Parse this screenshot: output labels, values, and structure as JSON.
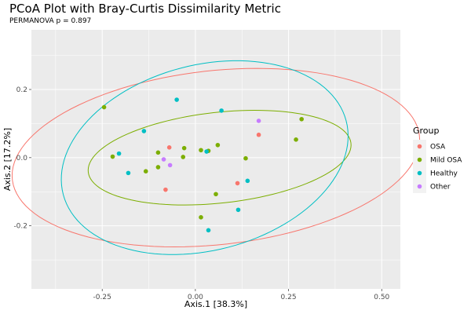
{
  "title": "PCoA Plot with Bray-Curtis Dissimilarity Metric",
  "subtitle": "PERMANOVA p = 0.897",
  "chart_data": {
    "type": "scatter",
    "title": "PCoA Plot with Bray-Curtis Dissimilarity Metric",
    "subtitle": "PERMANOVA p = 0.897",
    "xlabel": "Axis.1   [38.3%]",
    "ylabel": "Axis.2   [17.2%]",
    "xlim": [
      -0.44,
      0.55
    ],
    "ylim": [
      -0.385,
      0.375
    ],
    "x_ticks": [
      -0.25,
      0.0,
      0.25,
      0.5
    ],
    "x_tick_labels": [
      "-0.25",
      "0.00",
      "0.25",
      "0.50"
    ],
    "y_ticks": [
      -0.2,
      0.0,
      0.2
    ],
    "y_tick_labels": [
      "-0.2",
      "0.0",
      "0.2"
    ],
    "grid": true,
    "legend": {
      "title": "Group",
      "position": "right"
    },
    "series": [
      {
        "name": "OSA",
        "color": "#F8766D",
        "points": [
          [
            -0.07,
            0.03
          ],
          [
            -0.08,
            -0.094
          ],
          [
            0.113,
            -0.075
          ],
          [
            0.17,
            0.067
          ]
        ],
        "ellipse": {
          "center": [
            0.055,
            0.0
          ],
          "a": 0.55,
          "b": 0.255,
          "angle_deg": 7
        }
      },
      {
        "name": "Mild OSA",
        "color": "#7CAE00",
        "points": [
          [
            -0.245,
            0.148
          ],
          [
            -0.222,
            0.003
          ],
          [
            -0.133,
            -0.04
          ],
          [
            -0.1,
            0.015
          ],
          [
            -0.1,
            -0.028
          ],
          [
            -0.03,
            0.028
          ],
          [
            -0.033,
            0.002
          ],
          [
            0.015,
            0.022
          ],
          [
            0.035,
            0.02
          ],
          [
            0.06,
            0.037
          ],
          [
            0.055,
            -0.107
          ],
          [
            0.015,
            -0.175
          ],
          [
            0.135,
            -0.002
          ],
          [
            0.27,
            0.053
          ],
          [
            0.285,
            0.113
          ]
        ],
        "ellipse": {
          "center": [
            0.065,
            0.0
          ],
          "a": 0.355,
          "b": 0.133,
          "angle_deg": 7
        }
      },
      {
        "name": "Healthy",
        "color": "#00BFC4",
        "points": [
          [
            -0.205,
            0.012
          ],
          [
            -0.18,
            -0.045
          ],
          [
            -0.138,
            0.078
          ],
          [
            -0.05,
            0.17
          ],
          [
            0.03,
            0.018
          ],
          [
            0.07,
            0.138
          ],
          [
            0.115,
            -0.153
          ],
          [
            0.14,
            -0.068
          ],
          [
            0.035,
            -0.213
          ]
        ],
        "ellipse": {
          "center": [
            0.025,
            0.0
          ],
          "a": 0.395,
          "b": 0.27,
          "angle_deg": 18
        }
      },
      {
        "name": "Other",
        "color": "#C77CFF",
        "points": [
          [
            -0.085,
            -0.005
          ],
          [
            -0.068,
            -0.022
          ],
          [
            0.17,
            0.108
          ]
        ]
      }
    ]
  }
}
